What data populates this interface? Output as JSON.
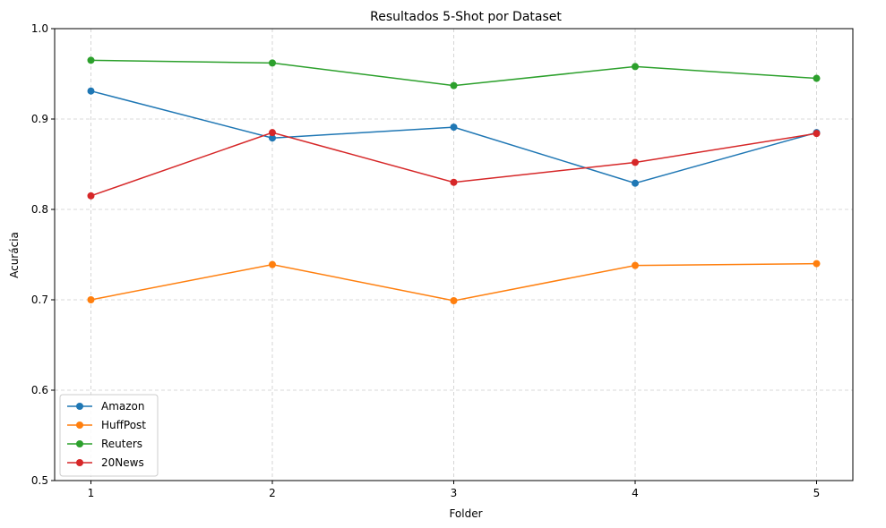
{
  "chart_data": {
    "type": "line",
    "title": "Resultados 5-Shot por Dataset",
    "xlabel": "Folder",
    "ylabel": "Acurácia",
    "x": [
      1,
      2,
      3,
      4,
      5
    ],
    "ylim": [
      0.5,
      1.0
    ],
    "yticks": [
      "0.5",
      "0.6",
      "0.7",
      "0.8",
      "0.9",
      "1.0"
    ],
    "xticks": [
      "1",
      "2",
      "3",
      "4",
      "5"
    ],
    "grid": true,
    "legend_position": "lower-left",
    "series": [
      {
        "name": "Amazon",
        "color": "#1f77b4",
        "values": [
          0.931,
          0.879,
          0.891,
          0.829,
          0.885
        ]
      },
      {
        "name": "HuffPost",
        "color": "#ff7f0e",
        "values": [
          0.7,
          0.739,
          0.699,
          0.738,
          0.74
        ]
      },
      {
        "name": "Reuters",
        "color": "#2ca02c",
        "values": [
          0.965,
          0.962,
          0.937,
          0.958,
          0.945
        ]
      },
      {
        "name": "20News",
        "color": "#d62728",
        "values": [
          0.815,
          0.885,
          0.83,
          0.852,
          0.884
        ]
      }
    ]
  }
}
